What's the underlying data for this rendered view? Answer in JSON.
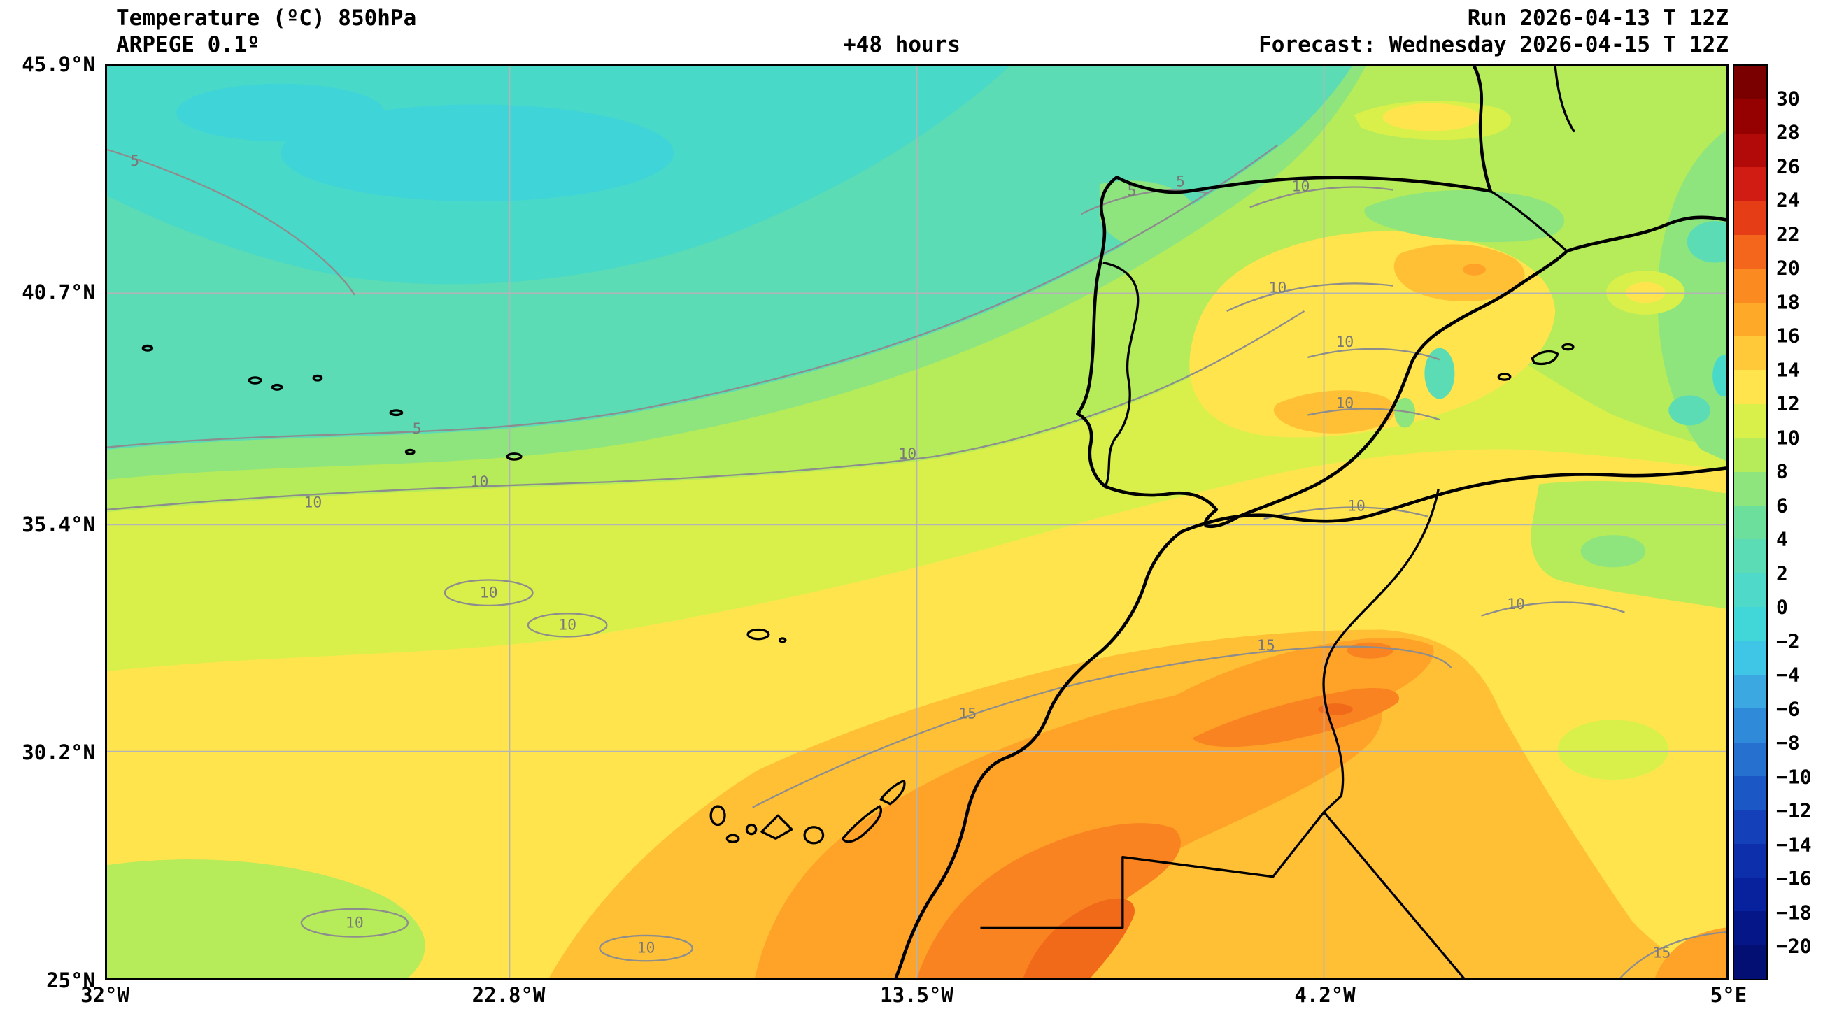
{
  "header": {
    "title": "Temperature (ºC) 850hPa",
    "model": "ARPEGE 0.1º",
    "lead_time": "+48 hours",
    "run": "Run 2026-04-13 T 12Z",
    "forecast": "Forecast: Wednesday 2026-04-15 T 12Z"
  },
  "axes": {
    "y_ticks": [
      {
        "label": "45.9°N",
        "pos": 0
      },
      {
        "label": "40.7°N",
        "pos": 0.2488
      },
      {
        "label": "35.4°N",
        "pos": 0.5024
      },
      {
        "label": "30.2°N",
        "pos": 0.7512
      },
      {
        "label": "25°N",
        "pos": 1
      }
    ],
    "x_ticks": [
      {
        "label": "32°W",
        "pos": 0
      },
      {
        "label": "22.8°W",
        "pos": 0.2486
      },
      {
        "label": "13.5°W",
        "pos": 0.5
      },
      {
        "label": "4.2°W",
        "pos": 0.7514
      },
      {
        "label": "5°E",
        "pos": 1
      }
    ]
  },
  "colorbar": {
    "unit": "°C",
    "ticks": [
      "30",
      "28",
      "26",
      "24",
      "22",
      "20",
      "18",
      "16",
      "14",
      "12",
      "10",
      "8",
      "6",
      "4",
      "2",
      "0",
      "−2",
      "−4",
      "−6",
      "−8",
      "−10",
      "−12",
      "−14",
      "−16",
      "−18",
      "−20"
    ],
    "colors": [
      "#7A0000",
      "#950000",
      "#B20909",
      "#D01C12",
      "#E53E17",
      "#F4661C",
      "#FB8A20",
      "#FFA928",
      "#FFC93A",
      "#FFE44E",
      "#D9F04B",
      "#B6EB5A",
      "#8EE57E",
      "#6BDF9B",
      "#5BDCB4",
      "#4ED9C8",
      "#41D6D8",
      "#3FC6E6",
      "#3BA8E2",
      "#2F8BDA",
      "#2670D0",
      "#1C57C6",
      "#1441BA",
      "#0D2FAC",
      "#08219C",
      "#051788",
      "#030F72"
    ]
  },
  "map": {
    "contour_labels": {
      "five": "5",
      "ten": "10",
      "fifteen": "15"
    }
  }
}
